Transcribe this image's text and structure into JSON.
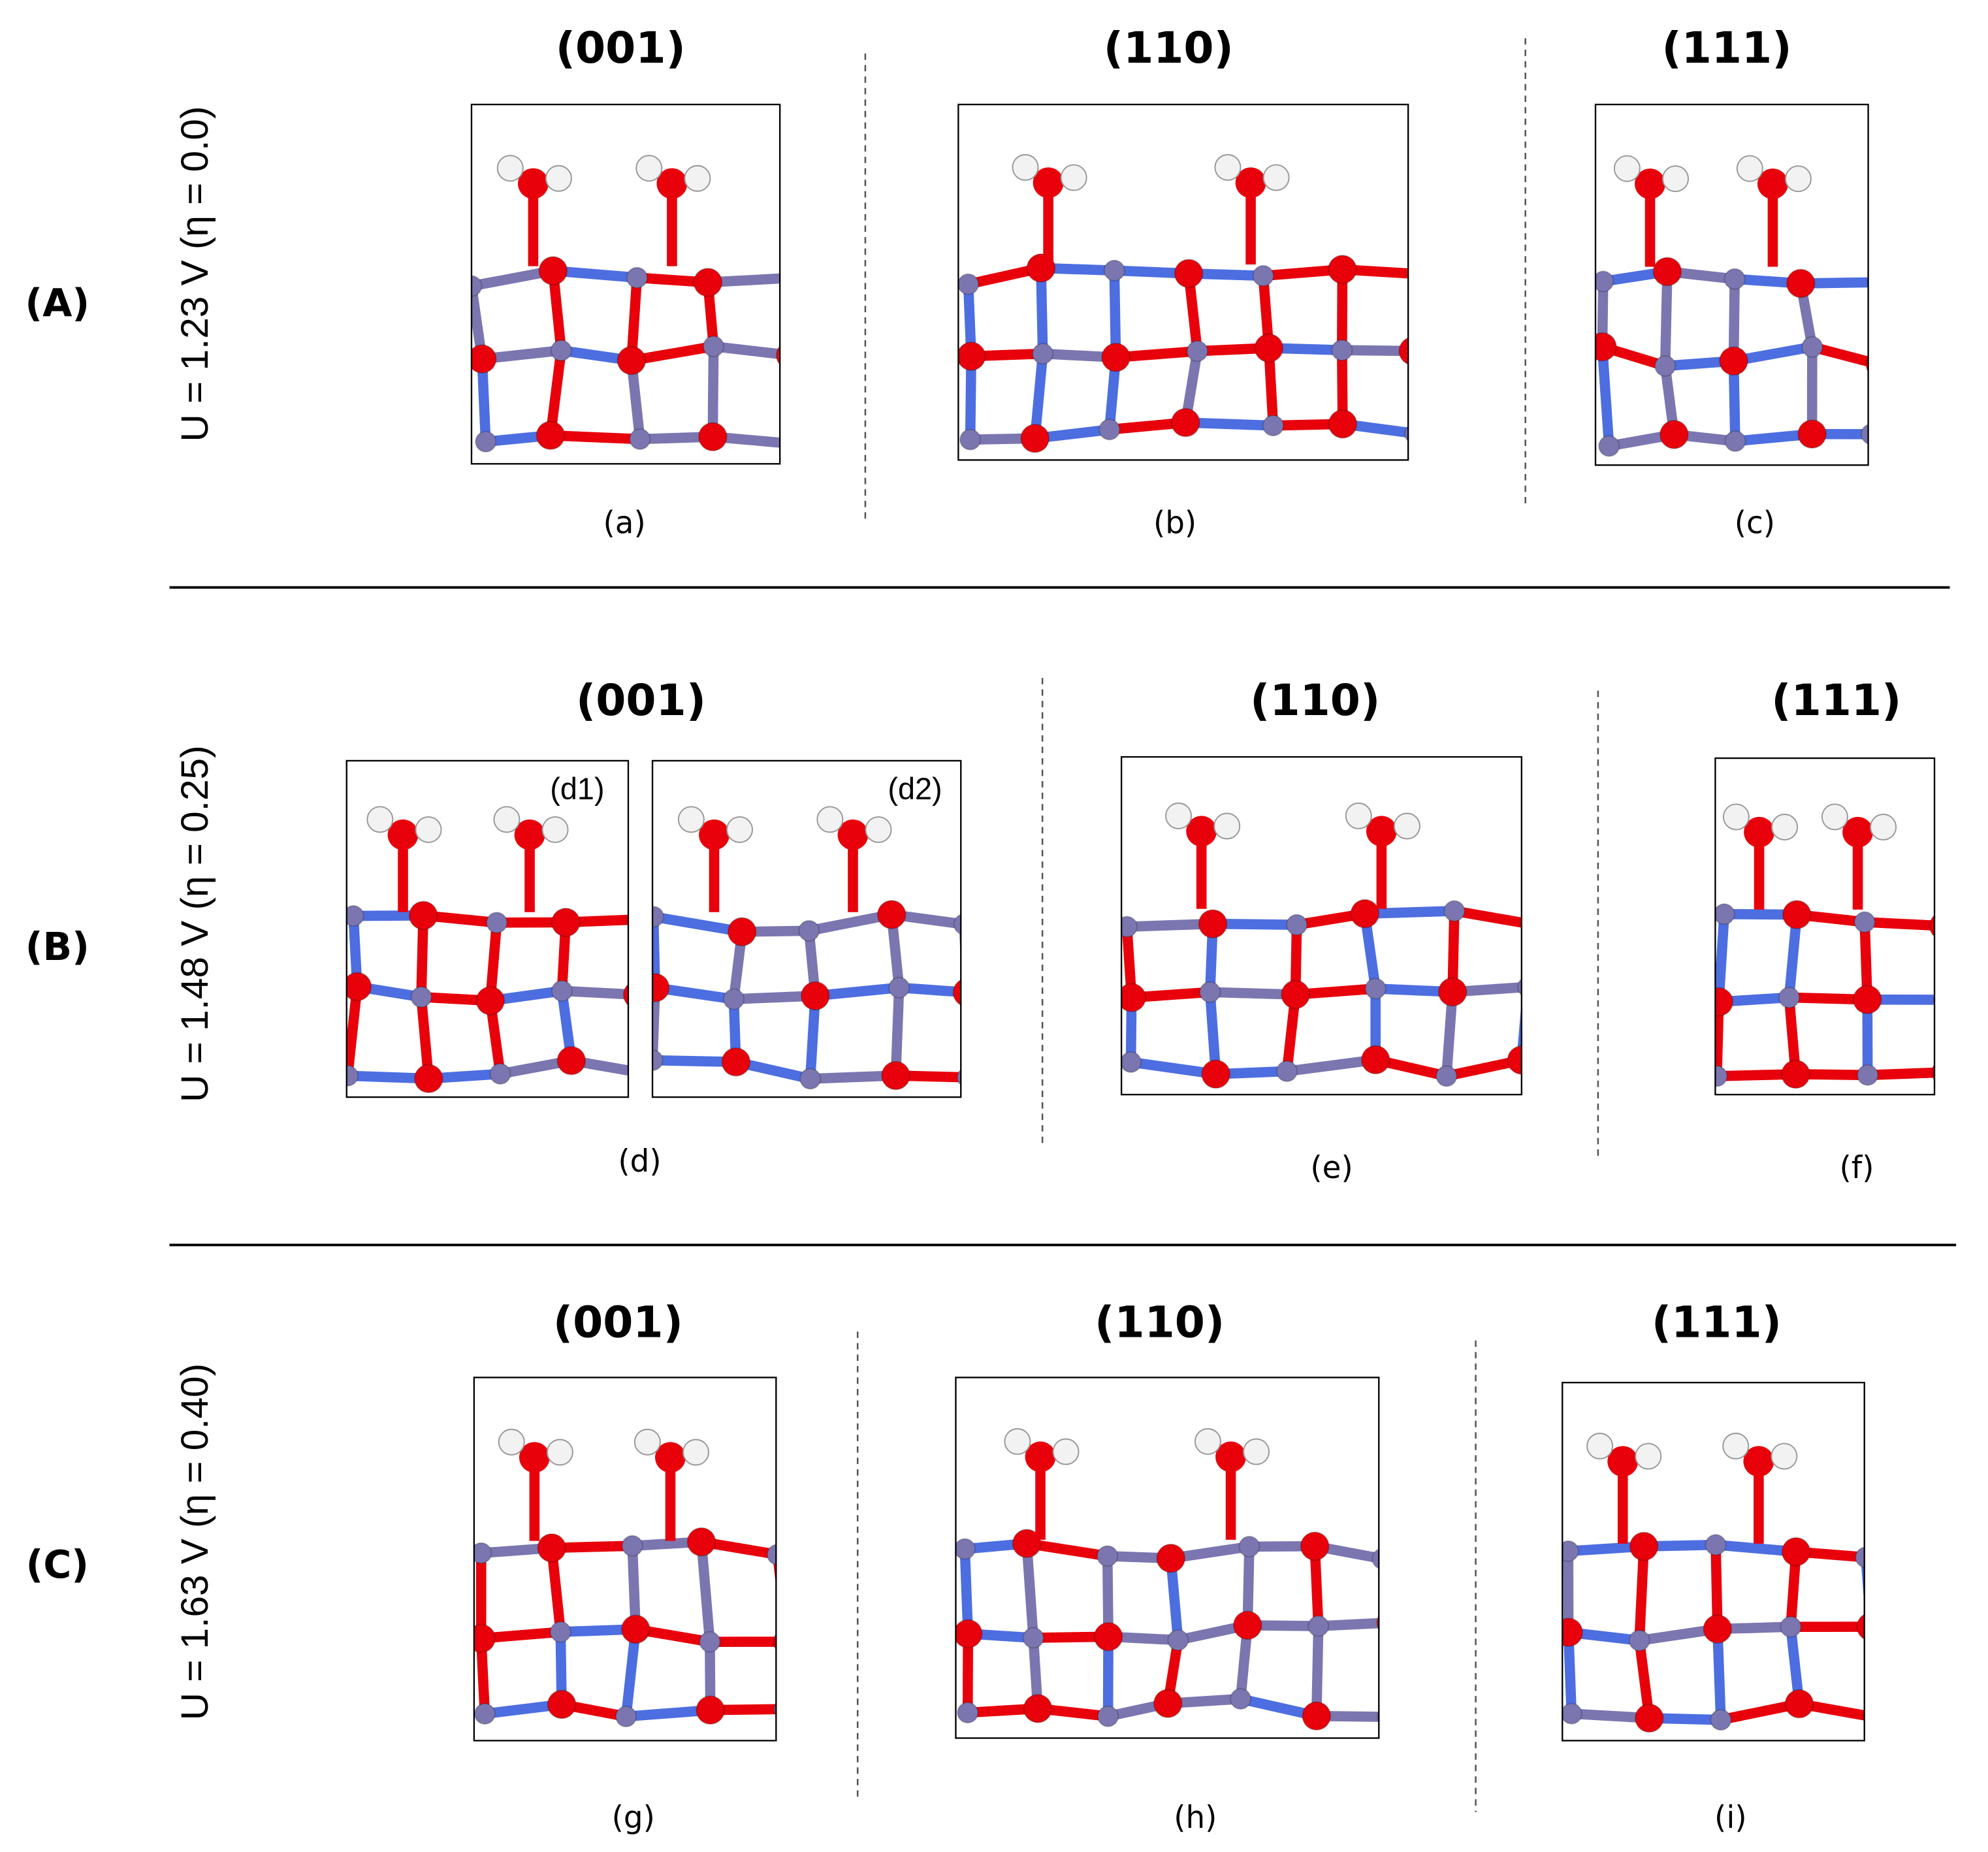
{
  "rows": [
    {
      "label": "(A)",
      "potential": "U = 1.23 V (η = 0.0)",
      "panels": [
        {
          "heading": "(001)",
          "caption": "(a)"
        },
        {
          "heading": "(110)",
          "caption": "(b)"
        },
        {
          "heading": "(111)",
          "caption": "(c)"
        }
      ]
    },
    {
      "label": "(B)",
      "potential": "U = 1.48 V (η = 0.25)",
      "panels": [
        {
          "heading": "(001)",
          "caption": "(d)",
          "frames": [
            "(d1)",
            "(d2)"
          ]
        },
        {
          "heading": "(110)",
          "caption": "(e)"
        },
        {
          "heading": "(111)",
          "caption": "(f)"
        }
      ]
    },
    {
      "label": "(C)",
      "potential": "U = 1.63 V (η = 0.40)",
      "panels": [
        {
          "heading": "(001)",
          "caption": "(g)"
        },
        {
          "heading": "(110)",
          "caption": "(h)"
        },
        {
          "heading": "(111)",
          "caption": "(i)"
        }
      ]
    }
  ]
}
